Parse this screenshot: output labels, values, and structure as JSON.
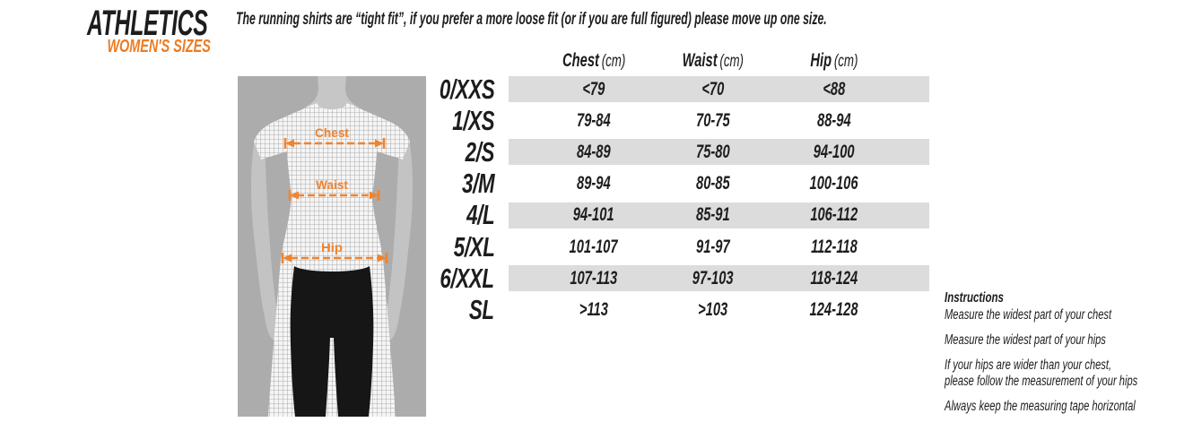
{
  "logo": {
    "title": "ATHLETICS",
    "subtitle": "WOMEN'S SIZES"
  },
  "note": "The running shirts are “tight fit”, if you prefer a more loose fit (or if you are full figured) please move up one size.",
  "figure": {
    "labels": [
      "Chest",
      "Waist",
      "Hip"
    ]
  },
  "table": {
    "columns": [
      {
        "label": "Chest",
        "unit": "(cm)"
      },
      {
        "label": "Waist",
        "unit": "(cm)"
      },
      {
        "label": "Hip",
        "unit": "(cm)"
      }
    ],
    "rows": [
      {
        "size": "0/XXS",
        "values": [
          "<79",
          "<70",
          "<88"
        ]
      },
      {
        "size": "1/XS",
        "values": [
          "79-84",
          "70-75",
          "88-94"
        ]
      },
      {
        "size": "2/S",
        "values": [
          "84-89",
          "75-80",
          "94-100"
        ]
      },
      {
        "size": "3/M",
        "values": [
          "89-94",
          "80-85",
          "100-106"
        ]
      },
      {
        "size": "4/L",
        "values": [
          "94-101",
          "85-91",
          "106-112"
        ]
      },
      {
        "size": "5/XL",
        "values": [
          "101-107",
          "91-97",
          "112-118"
        ]
      },
      {
        "size": "6/XXL",
        "values": [
          "107-113",
          "97-103",
          "118-124"
        ]
      },
      {
        "size": "SL",
        "values": [
          ">113",
          ">103",
          "124-128"
        ]
      }
    ]
  },
  "instructions": {
    "title": "Instructions",
    "items": [
      "Measure the widest part of your chest",
      "Measure the widest part of your hips",
      "If your hips are wider than your chest,\nplease follow the measurement of your hips",
      "Always keep the measuring tape horizontal"
    ]
  },
  "colors": {
    "accent_orange": "#ED7B23",
    "figure_orange": "#F0832E",
    "stripe_gray": "#DCDCDC",
    "photo_bg": "#ACACAC",
    "text": "#1D1D1D"
  }
}
